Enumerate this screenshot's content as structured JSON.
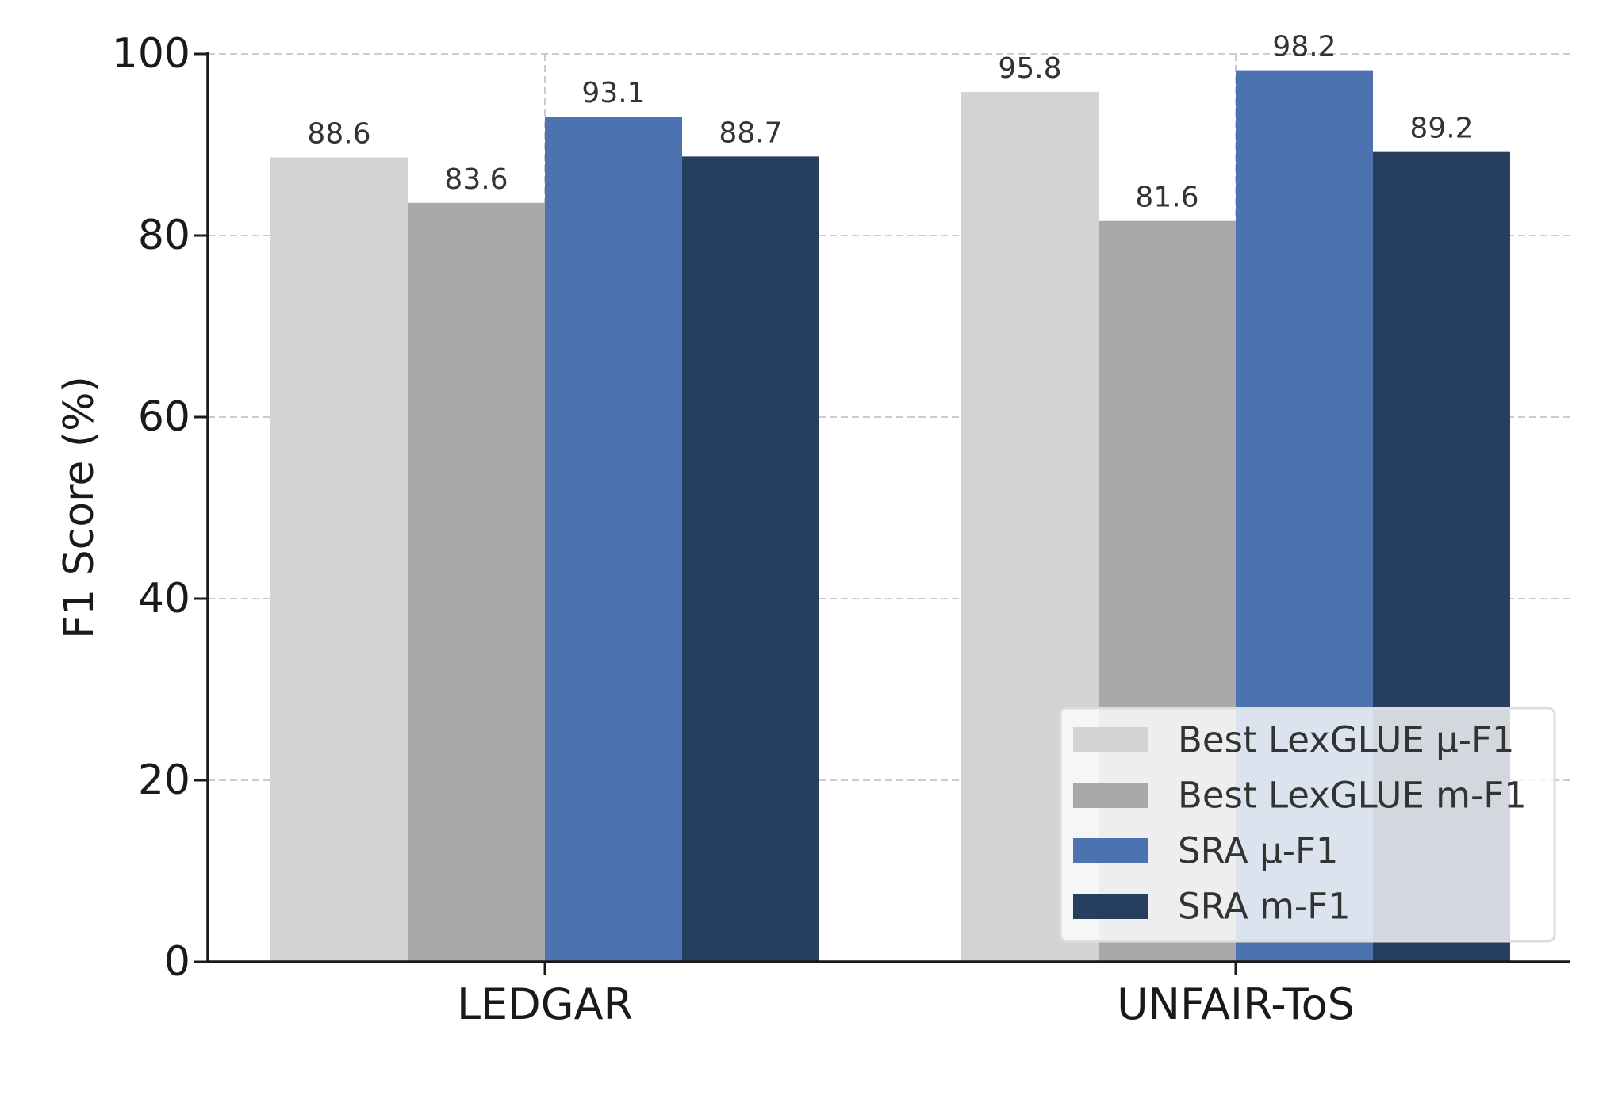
{
  "chart_data": {
    "type": "bar",
    "categories": [
      "LEDGAR",
      "UNFAIR-ToS"
    ],
    "series": [
      {
        "name": "Best LexGLUE μ-F1",
        "values": [
          88.6,
          95.8
        ],
        "color": "#d3d3d3"
      },
      {
        "name": "Best LexGLUE m-F1",
        "values": [
          83.6,
          81.6
        ],
        "color": "#a9a9a9"
      },
      {
        "name": "SRA μ-F1",
        "values": [
          93.1,
          98.2
        ],
        "color": "#4c72b0"
      },
      {
        "name": "SRA m-F1",
        "values": [
          88.7,
          89.2
        ],
        "color": "#263f5f"
      }
    ],
    "title": "",
    "xlabel": "",
    "ylabel": "F1 Score (%)",
    "ylim": [
      0,
      100
    ],
    "yticks": [
      "0",
      "20",
      "40",
      "60",
      "80",
      "100"
    ],
    "data_labels": [
      [
        "88.6",
        "95.8"
      ],
      [
        "83.6",
        "81.6"
      ],
      [
        "93.1",
        "98.2"
      ],
      [
        "88.7",
        "89.2"
      ]
    ],
    "grid": "dashed, both axes",
    "legend_position": "lower right"
  }
}
